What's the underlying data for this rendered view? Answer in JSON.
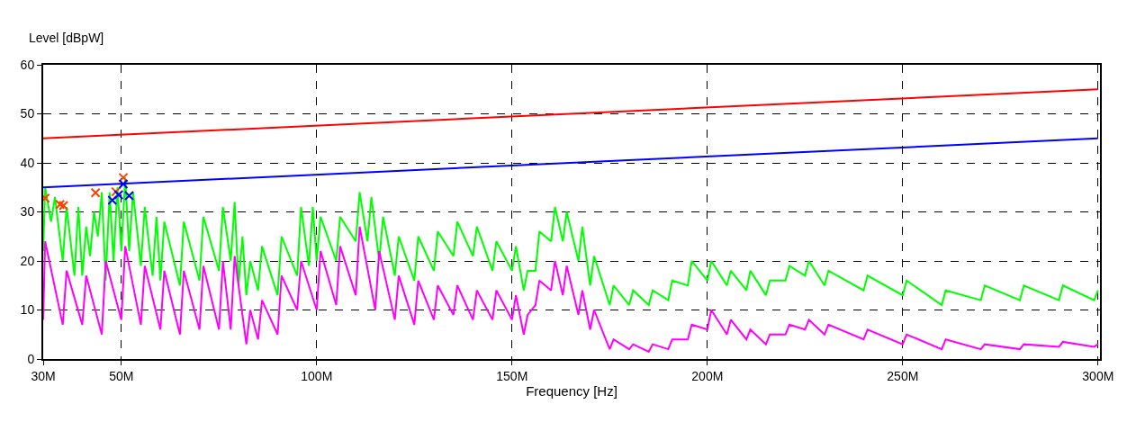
{
  "chart_data": {
    "type": "line",
    "xlabel": "Frequency [Hz]",
    "ylabel": "Level [dBpW]",
    "xlim": [
      30,
      300.5
    ],
    "ylim": [
      0,
      60
    ],
    "xticks": [
      {
        "value": 30,
        "label": "30M"
      },
      {
        "value": 50,
        "label": "50M"
      },
      {
        "value": 100,
        "label": "100M"
      },
      {
        "value": 150,
        "label": "150M"
      },
      {
        "value": 200,
        "label": "200M"
      },
      {
        "value": 250,
        "label": "250M"
      },
      {
        "value": 300,
        "label": "300M"
      }
    ],
    "yticks": [
      0,
      10,
      20,
      30,
      40,
      50,
      60
    ],
    "grid": true,
    "line_style": "solid",
    "marker": "none",
    "series": [
      {
        "color": "#00ff00",
        "x": [
          30,
          30.5,
          32,
          33,
          35,
          36,
          38,
          39,
          40,
          41,
          42,
          43,
          44,
          45,
          46,
          47,
          48,
          49,
          50,
          51,
          52,
          53,
          55,
          56,
          58,
          59,
          60,
          61,
          65,
          66,
          70,
          71,
          75,
          76,
          78,
          79,
          80,
          81,
          82,
          83,
          85,
          86,
          90,
          91,
          95,
          96,
          98,
          99,
          100,
          101,
          105,
          106,
          110,
          111,
          113,
          114,
          116,
          117,
          120,
          121,
          125,
          126,
          130,
          131,
          135,
          136,
          140,
          141,
          145,
          146,
          150,
          151,
          153,
          154,
          156,
          157,
          160,
          161,
          163,
          164,
          167,
          168,
          170,
          171,
          175,
          176,
          180,
          181,
          185,
          186,
          190,
          191,
          195,
          196,
          200,
          201,
          205,
          206,
          210,
          211,
          215,
          216,
          220,
          221,
          225,
          226,
          230,
          231,
          240,
          241,
          250,
          251,
          260,
          261,
          270,
          271,
          280,
          281,
          290,
          291,
          299,
          300
        ],
        "values": [
          22,
          35,
          28,
          33,
          20,
          31,
          17,
          31,
          17,
          27,
          21,
          30,
          25,
          34,
          16,
          34,
          20,
          35,
          22,
          37,
          22,
          34,
          19,
          31,
          17,
          29,
          16,
          28,
          15,
          28,
          16,
          29,
          18,
          31,
          20,
          32,
          15,
          25,
          13,
          20,
          14,
          23,
          13,
          25,
          17,
          31,
          19,
          31,
          20,
          29,
          20,
          29,
          24,
          34,
          24,
          33,
          20,
          29,
          17,
          25,
          16,
          25,
          18,
          26,
          21,
          28,
          21,
          27,
          18,
          24,
          18,
          23,
          14,
          18,
          18,
          26,
          24,
          31,
          24,
          30,
          20,
          27,
          15,
          21,
          11,
          15,
          11,
          14,
          11,
          14,
          12,
          16,
          15,
          20,
          16,
          20,
          15,
          18,
          14,
          18,
          13,
          16,
          16,
          19,
          17,
          20,
          15,
          18,
          14,
          17,
          13,
          16,
          11,
          14,
          12,
          15,
          12,
          15,
          12,
          15,
          12,
          14
        ]
      },
      {
        "color": "#ff00ff",
        "x": [
          30,
          30.5,
          35,
          36,
          40,
          41,
          45,
          46,
          50,
          51,
          55,
          56,
          60,
          61,
          65,
          66,
          70,
          71,
          75,
          76,
          78,
          79,
          82,
          83,
          85,
          86,
          90,
          91,
          95,
          96,
          100,
          101,
          105,
          106,
          110,
          111,
          115,
          116,
          120,
          121,
          125,
          126,
          130,
          131,
          135,
          136,
          140,
          141,
          145,
          146,
          150,
          151,
          153,
          154,
          156,
          157,
          160,
          161,
          163,
          164,
          167,
          168,
          170,
          171,
          175,
          176,
          180,
          181,
          185,
          186,
          190,
          191,
          195,
          196,
          200,
          201,
          205,
          206,
          210,
          211,
          215,
          216,
          220,
          221,
          225,
          226,
          230,
          231,
          240,
          241,
          250,
          251,
          260,
          261,
          270,
          271,
          280,
          281,
          290,
          291,
          299,
          300
        ],
        "values": [
          8,
          24,
          7,
          18,
          7,
          17,
          5,
          20,
          8,
          23,
          7,
          19,
          6,
          18,
          5,
          18,
          6,
          19,
          6,
          20,
          6,
          21,
          3,
          10,
          4,
          12,
          5,
          17,
          10,
          20,
          10,
          22,
          11,
          23,
          13,
          27,
          10,
          22,
          8,
          17,
          7,
          16,
          8,
          15,
          9,
          15,
          8,
          14,
          8,
          14,
          8,
          13,
          5,
          9,
          11,
          16,
          14,
          20,
          13,
          19,
          9,
          14,
          6,
          10,
          2,
          4,
          2,
          3,
          1.5,
          3,
          2,
          4,
          4,
          7,
          6,
          10,
          5,
          8,
          4,
          6,
          3,
          5,
          5,
          7,
          6,
          8,
          5,
          7,
          4,
          6,
          3,
          5,
          2,
          4,
          2,
          3,
          2,
          3,
          2.5,
          3.5,
          2.5,
          3
        ]
      },
      {
        "color": "#ff0000",
        "x": [
          30,
          300
        ],
        "values": [
          45,
          55
        ]
      },
      {
        "color": "#0000ff",
        "x": [
          30,
          300
        ],
        "values": [
          35,
          45
        ]
      },
      {
        "type": "scatter",
        "marker": "cross",
        "color": "#ff4000",
        "x": [
          30.5,
          34.3,
          35.2,
          43.4,
          48.6,
          50.5
        ],
        "values": [
          32.8,
          31.5,
          31.3,
          33.9,
          34.1,
          37
        ]
      },
      {
        "type": "scatter",
        "marker": "cross",
        "color": "#0000ff",
        "x": [
          47.7,
          49.3,
          50.5,
          52
        ],
        "values": [
          32.4,
          33.5,
          35.7,
          33.3
        ]
      }
    ]
  }
}
